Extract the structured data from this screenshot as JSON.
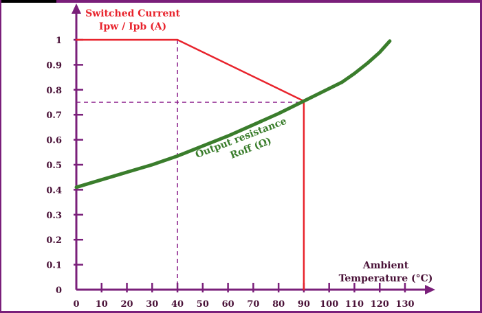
{
  "chart_data": {
    "type": "line",
    "title": "",
    "y_axis_title": [
      "Switched Current",
      "Ipw / Ipb (A)"
    ],
    "x_axis_title": [
      "Ambient",
      "Temperature (°C)"
    ],
    "x_ticks": [
      0,
      10,
      20,
      30,
      40,
      50,
      60,
      70,
      80,
      90,
      100,
      110,
      120,
      130
    ],
    "y_ticks": [
      0,
      0.1,
      0.2,
      0.3,
      0.4,
      0.5,
      0.6,
      0.7,
      0.8,
      0.9,
      1
    ],
    "y_tick_labels": [
      "0",
      "0.1",
      "0.2",
      "0.3",
      "0.4",
      "0.5",
      "0.6",
      "0.7",
      "0.8",
      "0.9",
      "1"
    ],
    "xlim": [
      0,
      140
    ],
    "ylim": [
      0,
      1.08
    ],
    "grid": false,
    "series": [
      {
        "name": "Switched Current",
        "color": "#e8232c",
        "x": [
          0,
          40,
          90,
          90
        ],
        "y": [
          1.0,
          1.0,
          0.755,
          0.0
        ]
      },
      {
        "name": "Output resistance Roff (Ω)",
        "color": "#3a7d2c",
        "x": [
          0,
          10,
          20,
          30,
          40,
          50,
          60,
          70,
          80,
          90,
          100,
          105,
          110,
          115,
          120,
          124
        ],
        "y": [
          0.41,
          0.44,
          0.47,
          0.5,
          0.535,
          0.575,
          0.615,
          0.66,
          0.705,
          0.755,
          0.805,
          0.83,
          0.865,
          0.905,
          0.95,
          0.995
        ]
      }
    ],
    "reference_lines": [
      {
        "orientation": "vertical",
        "x": 40,
        "y_from": 0,
        "y_to": 1.0,
        "color": "#8b1f8b"
      },
      {
        "orientation": "horizontal",
        "y": 0.75,
        "x_from": 0,
        "x_to": 90,
        "color": "#8b1f8b"
      }
    ],
    "annotations": [
      {
        "text_lines": [
          "Output resistance",
          "Roff (Ω)"
        ],
        "color": "#3a7d2c",
        "x": 76,
        "y": 0.62,
        "rotation_deg": -21
      }
    ],
    "axis_color": "#7a1f7a"
  }
}
